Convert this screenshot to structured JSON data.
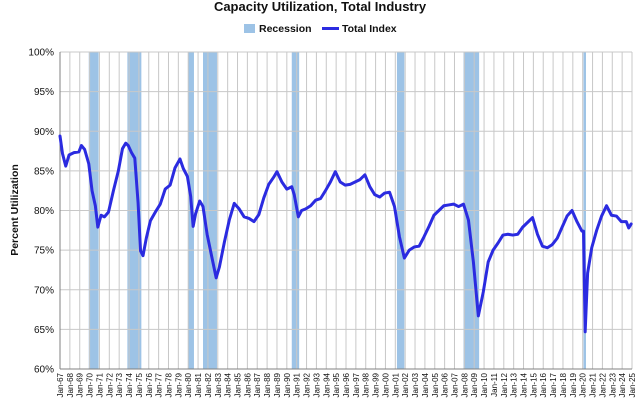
{
  "colors": {
    "recession": "#9dc3e6",
    "line": "#2b2be0",
    "grid": "#c8c8c8",
    "axis": "#808080"
  },
  "chart_data": {
    "type": "line",
    "title": "Capacity Utilization, Total Industry",
    "ylabel": "Percent Utilization",
    "xlabel": "",
    "ylim": [
      60,
      100
    ],
    "xlim": [
      "Jan-67",
      "Jan-25"
    ],
    "grid": true,
    "legend_position": "top",
    "legend": [
      {
        "name": "Recession",
        "kind": "area"
      },
      {
        "name": "Total Index",
        "kind": "line"
      }
    ],
    "y_ticks": [
      "60%",
      "65%",
      "70%",
      "75%",
      "80%",
      "85%",
      "90%",
      "95%",
      "100%"
    ],
    "x_ticks": [
      "Jan-67",
      "Jan-68",
      "Jan-69",
      "Jan-70",
      "Jan-71",
      "Jan-72",
      "Jan-73",
      "Jan-74",
      "Jan-75",
      "Jan-76",
      "Jan-77",
      "Jan-78",
      "Jan-79",
      "Jan-80",
      "Jan-81",
      "Jan-82",
      "Jan-83",
      "Jan-84",
      "Jan-85",
      "Jan-86",
      "Jan-87",
      "Jan-88",
      "Jan-89",
      "Jan-90",
      "Jan-91",
      "Jan-92",
      "Jan-93",
      "Jan-94",
      "Jan-95",
      "Jan-96",
      "Jan-97",
      "Jan-98",
      "Jan-99",
      "Jan-00",
      "Jan-01",
      "Jan-02",
      "Jan-03",
      "Jan-04",
      "Jan-05",
      "Jan-06",
      "Jan-07",
      "Jan-08",
      "Jan-09",
      "Jan-10",
      "Jan-11",
      "Jan-12",
      "Jan-13",
      "Jan-14",
      "Jan-15",
      "Jan-16",
      "Jan-17",
      "Jan-18",
      "Jan-19",
      "Jan-20",
      "Jan-21",
      "Jan-22",
      "Jan-23",
      "Jan-24",
      "Jan-25"
    ],
    "recessions": [
      {
        "start": "Dec-69",
        "end": "Nov-70"
      },
      {
        "start": "Nov-73",
        "end": "Mar-75"
      },
      {
        "start": "Jan-80",
        "end": "Jul-80"
      },
      {
        "start": "Jul-81",
        "end": "Nov-82"
      },
      {
        "start": "Jul-90",
        "end": "Mar-91"
      },
      {
        "start": "Mar-01",
        "end": "Nov-01"
      },
      {
        "start": "Dec-07",
        "end": "Jun-09"
      },
      {
        "start": "Feb-20",
        "end": "Apr-20"
      }
    ],
    "series": [
      {
        "name": "Total Index",
        "points": [
          [
            "Jan-67",
            89.4
          ],
          [
            "Apr-67",
            87.2
          ],
          [
            "Aug-67",
            85.6
          ],
          [
            "Dec-67",
            87.0
          ],
          [
            "Jun-68",
            87.3
          ],
          [
            "Dec-68",
            87.4
          ],
          [
            "Mar-69",
            88.2
          ],
          [
            "Jul-69",
            87.7
          ],
          [
            "Dec-69",
            85.9
          ],
          [
            "Apr-70",
            82.5
          ],
          [
            "Aug-70",
            80.6
          ],
          [
            "Nov-70",
            77.9
          ],
          [
            "Mar-71",
            79.4
          ],
          [
            "Jul-71",
            79.2
          ],
          [
            "Dec-71",
            79.8
          ],
          [
            "Jun-72",
            82.5
          ],
          [
            "Dec-72",
            85.0
          ],
          [
            "May-73",
            87.8
          ],
          [
            "Sep-73",
            88.5
          ],
          [
            "Dec-73",
            88.2
          ],
          [
            "Apr-74",
            87.3
          ],
          [
            "Aug-74",
            86.6
          ],
          [
            "Dec-74",
            81.0
          ],
          [
            "Mar-75",
            74.9
          ],
          [
            "Jun-75",
            74.3
          ],
          [
            "Oct-75",
            76.5
          ],
          [
            "Mar-76",
            78.7
          ],
          [
            "Sep-76",
            79.8
          ],
          [
            "Mar-77",
            80.8
          ],
          [
            "Sep-77",
            82.7
          ],
          [
            "Mar-78",
            83.2
          ],
          [
            "Sep-78",
            85.4
          ],
          [
            "Mar-79",
            86.5
          ],
          [
            "Jul-79",
            85.3
          ],
          [
            "Dec-79",
            84.3
          ],
          [
            "Apr-80",
            81.8
          ],
          [
            "Jul-80",
            78.0
          ],
          [
            "Oct-80",
            79.6
          ],
          [
            "Mar-81",
            81.2
          ],
          [
            "Jul-81",
            80.5
          ],
          [
            "Dec-81",
            77.0
          ],
          [
            "Jun-82",
            74.0
          ],
          [
            "Nov-82",
            71.5
          ],
          [
            "Mar-83",
            72.9
          ],
          [
            "Sep-83",
            76.0
          ],
          [
            "Mar-84",
            78.8
          ],
          [
            "Sep-84",
            80.9
          ],
          [
            "Mar-85",
            80.2
          ],
          [
            "Sep-85",
            79.2
          ],
          [
            "Mar-86",
            79.0
          ],
          [
            "Sep-86",
            78.6
          ],
          [
            "Mar-87",
            79.5
          ],
          [
            "Sep-87",
            81.6
          ],
          [
            "Mar-88",
            83.3
          ],
          [
            "Sep-88",
            84.2
          ],
          [
            "Jan-89",
            84.9
          ],
          [
            "Jul-89",
            83.6
          ],
          [
            "Jan-90",
            82.7
          ],
          [
            "Jul-90",
            83.0
          ],
          [
            "Oct-90",
            82.0
          ],
          [
            "Mar-91",
            79.2
          ],
          [
            "Jul-91",
            80.0
          ],
          [
            "Dec-91",
            80.2
          ],
          [
            "Jun-92",
            80.6
          ],
          [
            "Dec-92",
            81.3
          ],
          [
            "Jun-93",
            81.5
          ],
          [
            "Dec-93",
            82.5
          ],
          [
            "Jun-94",
            83.6
          ],
          [
            "Dec-94",
            84.9
          ],
          [
            "Jun-95",
            83.6
          ],
          [
            "Dec-95",
            83.2
          ],
          [
            "Jun-96",
            83.3
          ],
          [
            "Dec-96",
            83.6
          ],
          [
            "Jun-97",
            83.9
          ],
          [
            "Dec-97",
            84.5
          ],
          [
            "Jun-98",
            83.0
          ],
          [
            "Dec-98",
            82.0
          ],
          [
            "Jun-99",
            81.7
          ],
          [
            "Dec-99",
            82.2
          ],
          [
            "Jun-00",
            82.3
          ],
          [
            "Dec-00",
            80.5
          ],
          [
            "Jun-01",
            76.7
          ],
          [
            "Dec-01",
            74.0
          ],
          [
            "Jun-02",
            75.0
          ],
          [
            "Dec-02",
            75.4
          ],
          [
            "Jun-03",
            75.5
          ],
          [
            "Dec-03",
            76.7
          ],
          [
            "Jun-04",
            78.0
          ],
          [
            "Dec-04",
            79.4
          ],
          [
            "Jun-05",
            80.0
          ],
          [
            "Dec-05",
            80.6
          ],
          [
            "Jun-06",
            80.7
          ],
          [
            "Dec-06",
            80.8
          ],
          [
            "Jun-07",
            80.5
          ],
          [
            "Dec-07",
            80.8
          ],
          [
            "Jun-08",
            78.8
          ],
          [
            "Dec-08",
            73.5
          ],
          [
            "Jun-09",
            66.7
          ],
          [
            "Dec-09",
            69.7
          ],
          [
            "Jun-10",
            73.5
          ],
          [
            "Dec-10",
            75.0
          ],
          [
            "Jun-11",
            75.9
          ],
          [
            "Dec-11",
            76.9
          ],
          [
            "Jun-12",
            77.0
          ],
          [
            "Dec-12",
            76.9
          ],
          [
            "Jun-13",
            77.0
          ],
          [
            "Dec-13",
            77.9
          ],
          [
            "Jun-14",
            78.5
          ],
          [
            "Dec-14",
            79.1
          ],
          [
            "Jun-15",
            77.0
          ],
          [
            "Dec-15",
            75.5
          ],
          [
            "Jun-16",
            75.3
          ],
          [
            "Dec-16",
            75.7
          ],
          [
            "Jun-17",
            76.5
          ],
          [
            "Dec-17",
            77.9
          ],
          [
            "Jun-18",
            79.3
          ],
          [
            "Dec-18",
            80.0
          ],
          [
            "Jun-19",
            78.6
          ],
          [
            "Dec-19",
            77.4
          ],
          [
            "Feb-20",
            77.4
          ],
          [
            "Apr-20",
            64.7
          ],
          [
            "Jul-20",
            72.1
          ],
          [
            "Dec-20",
            75.3
          ],
          [
            "Jun-21",
            77.5
          ],
          [
            "Dec-21",
            79.3
          ],
          [
            "Jun-22",
            80.6
          ],
          [
            "Dec-22",
            79.4
          ],
          [
            "Jun-23",
            79.3
          ],
          [
            "Dec-23",
            78.6
          ],
          [
            "Jun-24",
            78.6
          ],
          [
            "Sep-24",
            77.8
          ],
          [
            "Dec-24",
            78.3
          ]
        ]
      }
    ]
  }
}
